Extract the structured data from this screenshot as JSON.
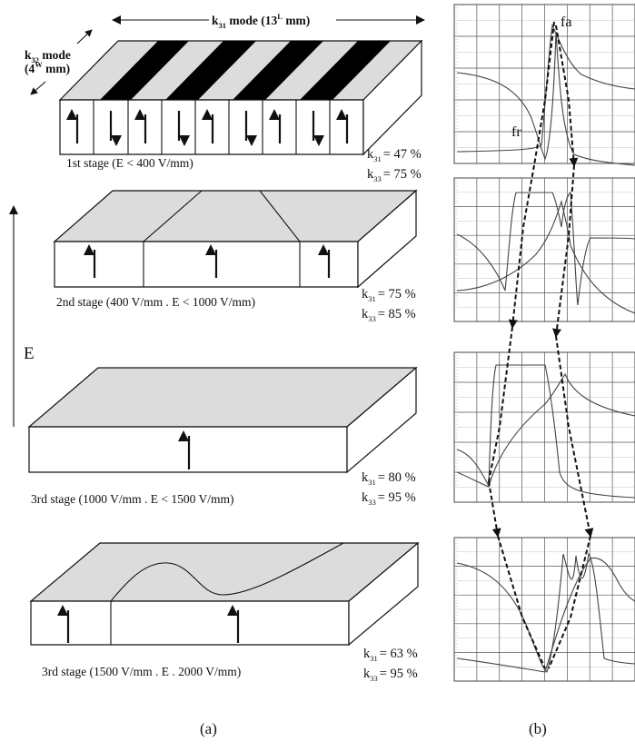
{
  "figure_a": {
    "mode_k31": {
      "k": "k",
      "sub": "31",
      "rest": " mode (13",
      "sup": "L",
      "end": " mm)"
    },
    "mode_k32": {
      "k": "k",
      "sub": "32",
      "rest": " mode",
      "line2_a": "(4",
      "line2_sup": "W",
      "line2_b": " mm)"
    },
    "field_label": "E",
    "stages": [
      {
        "caption": "1st stage (E < 400 V/mm)",
        "k31_value": "= 47 %",
        "k33_value": "= 75 %"
      },
      {
        "caption": "2nd stage (400 V/mm .   E < 1000 V/mm)",
        "k31_value": "= 75 %",
        "k33_value": "= 85 %"
      },
      {
        "caption": "3rd stage (1000 V/mm .   E < 1500 V/mm)",
        "k31_value": "= 80 %",
        "k33_value": "= 95 %"
      },
      {
        "caption": "3rd stage (1500 V/mm .   E .   2000 V/mm)",
        "k31_value": "= 63 %",
        "k33_value": "= 95 %"
      }
    ],
    "k_symbol": "k",
    "k31_sub": "31",
    "k33_sub": "33"
  },
  "figure_b": {
    "fa_label": "fa",
    "fr_label": "fr"
  },
  "captions": {
    "a": "(a)",
    "b": "(b)"
  }
}
